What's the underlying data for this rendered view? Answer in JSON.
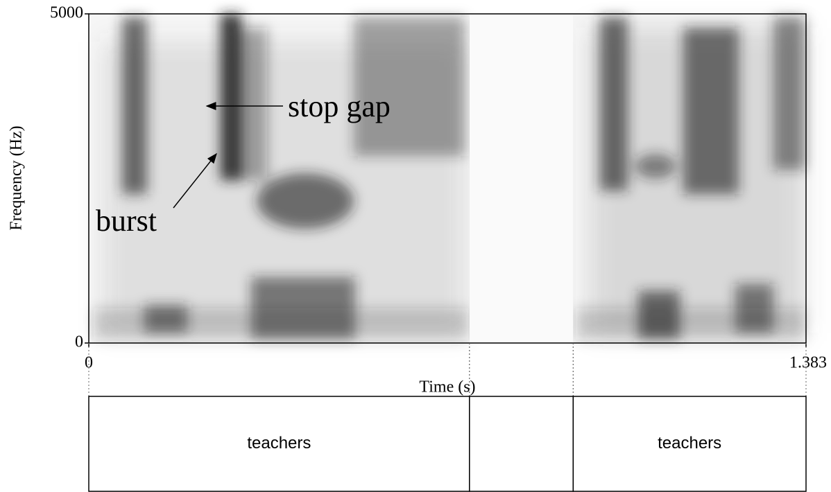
{
  "chart_data": {
    "type": "spectrogram",
    "xlabel": "Time (s)",
    "ylabel": "Frequency (Hz)",
    "xlim": [
      0,
      1.383
    ],
    "ylim": [
      0,
      5000
    ],
    "xticks": [
      0,
      1.383
    ],
    "yticks": [
      0,
      5000
    ],
    "annotations": [
      "stop gap",
      "burst"
    ],
    "tier": [
      {
        "start": 0,
        "end": 0.734,
        "text": "teachers"
      },
      {
        "start": 0.734,
        "end": 0.934
      },
      {
        "start": 0.934,
        "end": 1.383,
        "text": "teachers"
      }
    ]
  }
}
